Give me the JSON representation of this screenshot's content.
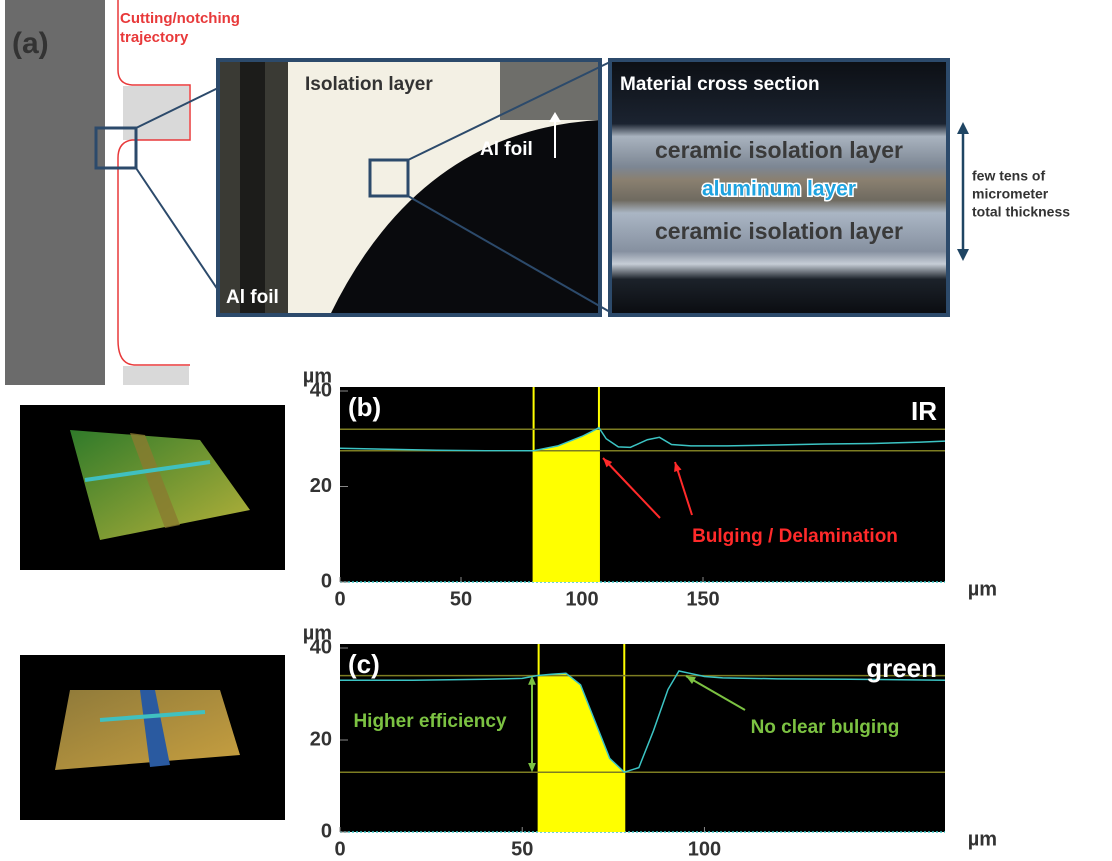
{
  "panel_a": {
    "label": "(a)",
    "trajectory_label": [
      "Cutting/notching",
      "trajectory"
    ],
    "micrograph": {
      "top_label": "Isolation layer",
      "right_label": "Al foil",
      "left_label": "Al foil"
    },
    "cross_section": {
      "title": "Material cross section",
      "layers": [
        "ceramic isolation layer",
        "aluminum layer",
        "ceramic isolation layer"
      ],
      "thickness_note": [
        "few tens of",
        "micrometer",
        "total thickness"
      ]
    }
  },
  "chart_data": [
    {
      "type": "line",
      "panel_label": "(b)",
      "laser": "IR",
      "y_unit": "µm",
      "x_unit": "µm",
      "x": [
        0,
        20,
        40,
        60,
        80,
        90,
        100,
        104,
        107,
        110,
        115,
        120,
        127,
        132,
        137,
        145,
        160,
        180,
        200,
        220,
        240,
        250
      ],
      "series": [
        {
          "color": "#3cc4c4",
          "values": [
            28,
            27.8,
            27.6,
            27.5,
            27.5,
            28.5,
            30.5,
            31.5,
            32.3,
            30,
            28.3,
            28.2,
            29.8,
            30.3,
            28.8,
            28.5,
            28.5,
            28.7,
            28.9,
            29.0,
            29.3,
            29.5
          ]
        }
      ],
      "xlim": [
        0,
        250
      ],
      "ylim": [
        0,
        40
      ],
      "xticks": [
        0,
        50,
        100,
        150
      ],
      "yticks": [
        0,
        20,
        40
      ],
      "highlight_span": [
        80,
        107
      ],
      "span_color": "#ffff00",
      "ref_lines": [
        32,
        27.5
      ],
      "ref_color": "#7d7d22",
      "annotations": [
        "Bulging / Delamination"
      ],
      "annotation_color": "#ff2a2a"
    },
    {
      "type": "line",
      "panel_label": "(c)",
      "laser": "green",
      "y_unit": "µm",
      "x_unit": "µm",
      "x": [
        0,
        20,
        40,
        50,
        54,
        58,
        62,
        66,
        70,
        74,
        78,
        82,
        86,
        90,
        93,
        96,
        100,
        105,
        120,
        140,
        166
      ],
      "series": [
        {
          "color": "#3cc4c4",
          "values": [
            33,
            33,
            33.2,
            33.4,
            34,
            34.3,
            34.5,
            32,
            24,
            16,
            13,
            14,
            22,
            31,
            35,
            34.5,
            33.8,
            33.5,
            33.3,
            33.2,
            33
          ]
        }
      ],
      "xlim": [
        0,
        166
      ],
      "ylim": [
        0,
        40
      ],
      "xticks": [
        0,
        50,
        100
      ],
      "yticks": [
        0,
        20,
        40
      ],
      "highlight_span": [
        54.5,
        78
      ],
      "span_color": "#ffff00",
      "ref_lines": [
        34,
        13
      ],
      "ref_color": "#7d7d22",
      "annotations": [
        "Higher efficiency",
        "No clear bulging"
      ],
      "annotation_color": "#7cc242"
    }
  ]
}
